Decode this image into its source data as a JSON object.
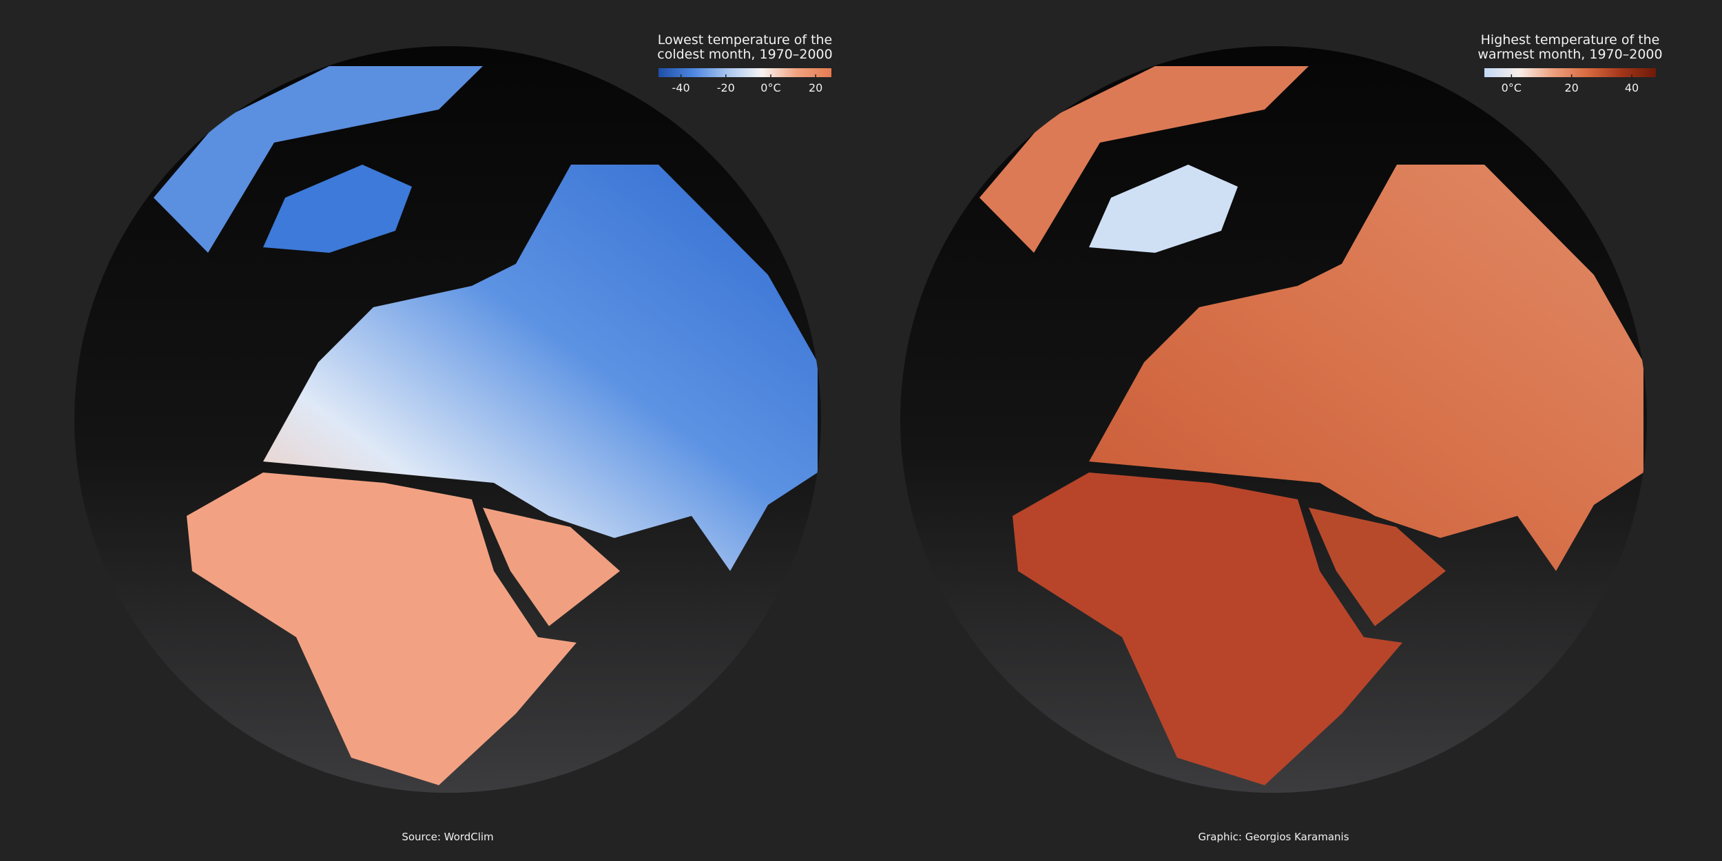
{
  "maps": [
    {
      "legend": {
        "title": [
          "Lowest temperature of the",
          "coldest month, 1970–2000"
        ],
        "range": [
          -50,
          27
        ],
        "ticks": [
          -40,
          -20,
          {
            "value": 0,
            "label": "0°C"
          },
          20
        ],
        "colors": [
          "#1f4fa8",
          "#4d86df",
          "#a9c6f0",
          "#f7f4f2",
          "#f0a27f",
          "#e67c52"
        ]
      },
      "footer": "Source: WordClim"
    },
    {
      "legend": {
        "title": [
          "Highest temperature of the",
          "warmest month, 1970–2000"
        ],
        "range": [
          -9,
          48
        ],
        "ticks": [
          {
            "value": 0,
            "label": "0°C"
          },
          20,
          40
        ],
        "colors": [
          "#c3d9f5",
          "#f7efea",
          "#eea07e",
          "#d86a40",
          "#a3361a",
          "#6e1a08"
        ]
      },
      "footer": "Graphic: Georgios Karamanis"
    }
  ]
}
